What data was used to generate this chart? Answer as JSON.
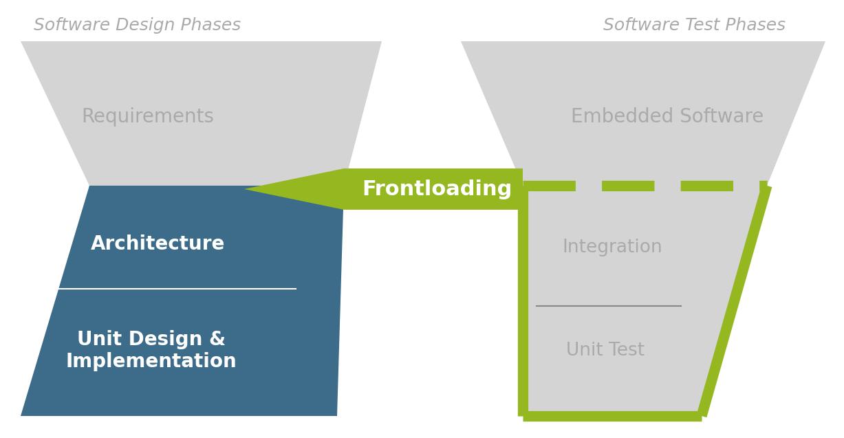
{
  "bg_color": "#ffffff",
  "title_left": "Software Design Phases",
  "title_right": "Software Test Phases",
  "title_color": "#aaaaaa",
  "title_fontsize": 18,
  "left_trapezoid_color": "#d4d4d4",
  "right_trapezoid_color": "#d4d4d4",
  "left_blue_color": "#3d6b8a",
  "green_color": "#95b820",
  "label_requirements": "Requirements",
  "label_embedded": "Embedded Software",
  "label_architecture": "Architecture",
  "label_integration": "Integration",
  "label_unit_design": "Unit Design &\nImplementation",
  "label_unit_test": "Unit Test",
  "label_frontloading": "Frontloading",
  "gray_text_color": "#aaaaaa",
  "white_text_color": "#ffffff",
  "dark_text_color": "#555555"
}
